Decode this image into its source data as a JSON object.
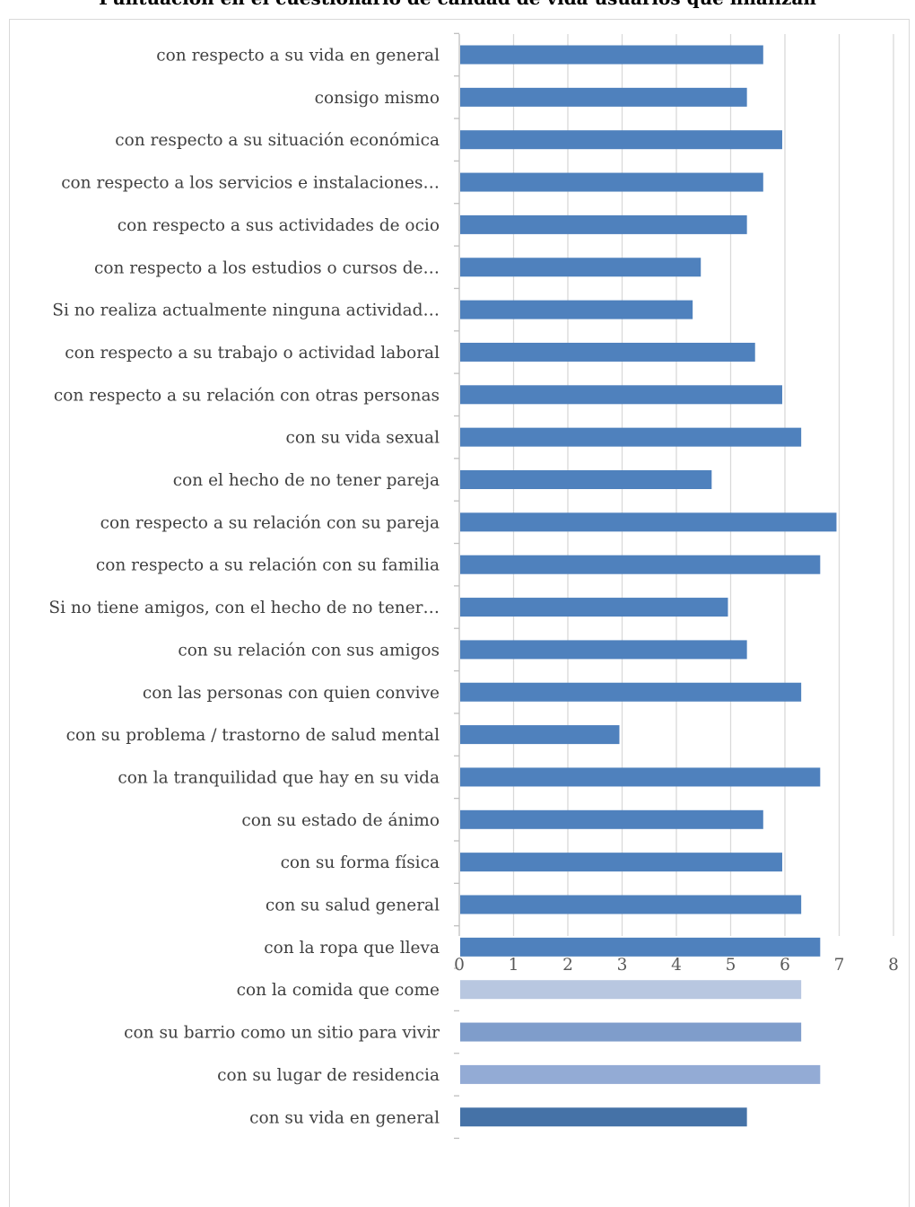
{
  "chart_data": {
    "type": "bar",
    "orientation": "horizontal",
    "title": "Puntuación en el cuestionario de calidad de vida usuarios que finalizan",
    "xlabel": "",
    "ylabel": "",
    "xlim": [
      0,
      8
    ],
    "xticks": [
      "0",
      "1",
      "2",
      "3",
      "4",
      "5",
      "6",
      "7",
      "8"
    ],
    "grid": true,
    "legend": "none",
    "categories": [
      "con respecto a su vida en general",
      "consigo mismo",
      "con respecto a su situación económica",
      "con respecto a los servicios e instalaciones…",
      "con respecto a sus actividades de ocio",
      "con respecto a los estudios o cursos de…",
      "Si no realiza actualmente ninguna actividad…",
      "con respecto a su trabajo o actividad laboral",
      "con respecto a su relación con otras personas",
      "con su vida sexual",
      "con el hecho de no tener pareja",
      "con respecto a su relación con su pareja",
      "con respecto a su relación con su familia",
      "Si no tiene amigos, con el hecho de no tener…",
      "con su relación con sus amigos",
      "con las personas con quien convive",
      "con su problema / trastorno de salud mental",
      "con la tranquilidad que hay en su vida",
      "con su estado de ánimo",
      "con su forma física",
      "con su salud general",
      "con la ropa que lleva",
      "con la comida que come",
      "con su barrio como un sitio para vivir",
      "con su lugar de residencia",
      "con su vida en general"
    ],
    "values": [
      5.6,
      5.3,
      5.95,
      5.6,
      5.3,
      4.45,
      4.3,
      5.45,
      5.95,
      6.3,
      4.65,
      6.95,
      6.65,
      4.95,
      5.3,
      6.3,
      2.95,
      6.65,
      5.6,
      5.95,
      6.3,
      6.65,
      6.3,
      6.3,
      6.65,
      5.3
    ],
    "bar_colors": [
      "#4f81bd",
      "#4f81bd",
      "#4f81bd",
      "#4f81bd",
      "#4f81bd",
      "#4f81bd",
      "#4f81bd",
      "#4f81bd",
      "#4f81bd",
      "#4f81bd",
      "#4f81bd",
      "#4f81bd",
      "#4f81bd",
      "#4f81bd",
      "#4f81bd",
      "#4f81bd",
      "#4f81bd",
      "#4f81bd",
      "#4f81bd",
      "#4f81bd",
      "#4f81bd",
      "#4f81bd",
      "#b8c7e0",
      "#7f9dcb",
      "#93abd5",
      "#4572a7"
    ],
    "gridline_color": "#d9d9d9",
    "axis_color": "#bfbfbf"
  }
}
